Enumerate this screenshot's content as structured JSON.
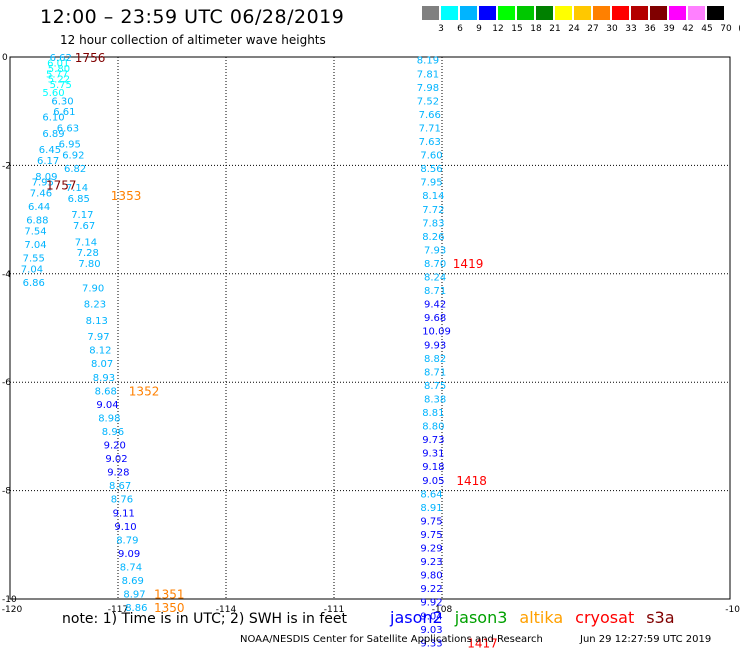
{
  "header": {
    "title": "12:00 – 23:59 UTC 06/28/2019",
    "subtitle": "12 hour collection of altimeter wave heights"
  },
  "scale": {
    "colors": [
      "#808080",
      "#00ffff",
      "#00b4ff",
      "#0000ff",
      "#00ff00",
      "#00c800",
      "#008000",
      "#ffff00",
      "#ffc800",
      "#ff8000",
      "#ff0000",
      "#b40000",
      "#800000",
      "#ff00ff",
      "#ff80ff",
      "#000000"
    ],
    "labels": [
      "3",
      "6",
      "9",
      "12",
      "15",
      "18",
      "21",
      "24",
      "27",
      "30",
      "33",
      "36",
      "39",
      "42",
      "45",
      "70",
      "(ft)"
    ]
  },
  "axes": {
    "x_ticks": [
      "-120",
      "-117",
      "-114",
      "-111",
      "-108",
      "-10"
    ],
    "y_ticks": [
      "0",
      "-2",
      "-4",
      "-6",
      "-8",
      "-10"
    ]
  },
  "passes": [
    {
      "satellite": "left-track",
      "readings": [
        {
          "v": "6.62",
          "lon": -118.9,
          "lat": 0.0,
          "c": "#00b4ff"
        },
        {
          "v": "6.01",
          "lon": -118.97,
          "lat": -0.1,
          "c": "#00ffff"
        },
        {
          "v": "5.80",
          "lon": -118.95,
          "lat": -0.2,
          "c": "#00ffff"
        },
        {
          "v": "5.77",
          "lon": -119.0,
          "lat": -0.3,
          "c": "#00ffff"
        },
        {
          "v": "5.22",
          "lon": -118.95,
          "lat": -0.4,
          "c": "#00ffff"
        },
        {
          "v": "5.75",
          "lon": -118.9,
          "lat": -0.5,
          "c": "#00ffff"
        },
        {
          "v": "5.60",
          "lon": -119.1,
          "lat": -0.65,
          "c": "#00ffff"
        },
        {
          "v": "6.30",
          "lon": -118.85,
          "lat": -0.8,
          "c": "#00b4ff"
        },
        {
          "v": "6.61",
          "lon": -118.8,
          "lat": -1.0,
          "c": "#00b4ff"
        },
        {
          "v": "6.10",
          "lon": -119.1,
          "lat": -1.1,
          "c": "#00b4ff"
        },
        {
          "v": "6.63",
          "lon": -118.7,
          "lat": -1.3,
          "c": "#00b4ff"
        },
        {
          "v": "6.89",
          "lon": -119.1,
          "lat": -1.4,
          "c": "#00b4ff"
        },
        {
          "v": "6.95",
          "lon": -118.65,
          "lat": -1.6,
          "c": "#00b4ff"
        },
        {
          "v": "6.45",
          "lon": -119.2,
          "lat": -1.7,
          "c": "#00b4ff"
        },
        {
          "v": "6.92",
          "lon": -118.55,
          "lat": -1.8,
          "c": "#00b4ff"
        },
        {
          "v": "6.17",
          "lon": -119.25,
          "lat": -1.9,
          "c": "#00b4ff"
        },
        {
          "v": "6.82",
          "lon": -118.5,
          "lat": -2.05,
          "c": "#00b4ff"
        },
        {
          "v": "8.09",
          "lon": -119.3,
          "lat": -2.2,
          "c": "#00b4ff"
        },
        {
          "v": "7.95",
          "lon": -119.4,
          "lat": -2.3,
          "c": "#00b4ff"
        },
        {
          "v": "7.14",
          "lon": -118.45,
          "lat": -2.4,
          "c": "#00b4ff"
        },
        {
          "v": "7.46",
          "lon": -119.45,
          "lat": -2.5,
          "c": "#00b4ff"
        },
        {
          "v": "6.85",
          "lon": -118.4,
          "lat": -2.6,
          "c": "#00b4ff"
        },
        {
          "v": "6.44",
          "lon": -119.5,
          "lat": -2.75,
          "c": "#00b4ff"
        },
        {
          "v": "7.17",
          "lon": -118.3,
          "lat": -2.9,
          "c": "#00b4ff"
        },
        {
          "v": "6.88",
          "lon": -119.55,
          "lat": -3.0,
          "c": "#00b4ff"
        },
        {
          "v": "7.67",
          "lon": -118.25,
          "lat": -3.1,
          "c": "#00b4ff"
        },
        {
          "v": "7.54",
          "lon": -119.6,
          "lat": -3.2,
          "c": "#00b4ff"
        },
        {
          "v": "7.14",
          "lon": -118.2,
          "lat": -3.4,
          "c": "#00b4ff"
        },
        {
          "v": "7.04",
          "lon": -119.6,
          "lat": -3.45,
          "c": "#00b4ff"
        },
        {
          "v": "7.28",
          "lon": -118.15,
          "lat": -3.6,
          "c": "#00b4ff"
        },
        {
          "v": "7.55",
          "lon": -119.65,
          "lat": -3.7,
          "c": "#00b4ff"
        },
        {
          "v": "7.80",
          "lon": -118.1,
          "lat": -3.8,
          "c": "#00b4ff"
        },
        {
          "v": "7.04",
          "lon": -119.7,
          "lat": -3.9,
          "c": "#00b4ff"
        },
        {
          "v": "6.86",
          "lon": -119.65,
          "lat": -4.15,
          "c": "#00b4ff"
        },
        {
          "v": "7.90",
          "lon": -118.0,
          "lat": -4.25,
          "c": "#00b4ff"
        },
        {
          "v": "8.23",
          "lon": -117.95,
          "lat": -4.55,
          "c": "#00b4ff"
        },
        {
          "v": "8.13",
          "lon": -117.9,
          "lat": -4.85,
          "c": "#00b4ff"
        },
        {
          "v": "7.97",
          "lon": -117.85,
          "lat": -5.15,
          "c": "#00b4ff"
        },
        {
          "v": "8.12",
          "lon": -117.8,
          "lat": -5.4,
          "c": "#00b4ff"
        },
        {
          "v": "8.07",
          "lon": -117.75,
          "lat": -5.65,
          "c": "#00b4ff"
        },
        {
          "v": "8.93",
          "lon": -117.7,
          "lat": -5.9,
          "c": "#00b4ff"
        },
        {
          "v": "8.68",
          "lon": -117.65,
          "lat": -6.15,
          "c": "#00b4ff"
        },
        {
          "v": "9.04",
          "lon": -117.6,
          "lat": -6.4,
          "c": "#0000ff"
        },
        {
          "v": "8.98",
          "lon": -117.55,
          "lat": -6.65,
          "c": "#00b4ff"
        },
        {
          "v": "8.96",
          "lon": -117.45,
          "lat": -6.9,
          "c": "#00b4ff"
        },
        {
          "v": "9.20",
          "lon": -117.4,
          "lat": -7.15,
          "c": "#0000ff"
        },
        {
          "v": "9.02",
          "lon": -117.35,
          "lat": -7.4,
          "c": "#0000ff"
        },
        {
          "v": "9.28",
          "lon": -117.3,
          "lat": -7.65,
          "c": "#0000ff"
        },
        {
          "v": "8.67",
          "lon": -117.25,
          "lat": -7.9,
          "c": "#00b4ff"
        },
        {
          "v": "8.76",
          "lon": -117.2,
          "lat": -8.15,
          "c": "#00b4ff"
        },
        {
          "v": "9.11",
          "lon": -117.15,
          "lat": -8.4,
          "c": "#0000ff"
        },
        {
          "v": "9.10",
          "lon": -117.1,
          "lat": -8.65,
          "c": "#0000ff"
        },
        {
          "v": "8.79",
          "lon": -117.05,
          "lat": -8.9,
          "c": "#00b4ff"
        },
        {
          "v": "9.09",
          "lon": -117.0,
          "lat": -9.15,
          "c": "#0000ff"
        },
        {
          "v": "8.74",
          "lon": -116.95,
          "lat": -9.4,
          "c": "#00b4ff"
        },
        {
          "v": "8.69",
          "lon": -116.9,
          "lat": -9.65,
          "c": "#00b4ff"
        },
        {
          "v": "8.97",
          "lon": -116.85,
          "lat": -9.9,
          "c": "#00b4ff"
        },
        {
          "v": "8.86",
          "lon": -116.8,
          "lat": -10.15,
          "c": "#00b4ff"
        }
      ]
    },
    {
      "satellite": "right-track",
      "readings": [
        {
          "v": "8.19",
          "lon": -108.7,
          "lat": -0.05,
          "c": "#00b4ff"
        },
        {
          "v": "7.81",
          "lon": -108.7,
          "lat": -0.3,
          "c": "#00b4ff"
        },
        {
          "v": "7.98",
          "lon": -108.7,
          "lat": -0.55,
          "c": "#00b4ff"
        },
        {
          "v": "7.52",
          "lon": -108.7,
          "lat": -0.8,
          "c": "#00b4ff"
        },
        {
          "v": "7.66",
          "lon": -108.65,
          "lat": -1.05,
          "c": "#00b4ff"
        },
        {
          "v": "7.71",
          "lon": -108.65,
          "lat": -1.3,
          "c": "#00b4ff"
        },
        {
          "v": "7.63",
          "lon": -108.65,
          "lat": -1.55,
          "c": "#00b4ff"
        },
        {
          "v": "7.60",
          "lon": -108.6,
          "lat": -1.8,
          "c": "#00b4ff"
        },
        {
          "v": "8.56",
          "lon": -108.6,
          "lat": -2.05,
          "c": "#00b4ff"
        },
        {
          "v": "7.95",
          "lon": -108.6,
          "lat": -2.3,
          "c": "#00b4ff"
        },
        {
          "v": "8.14",
          "lon": -108.55,
          "lat": -2.55,
          "c": "#00b4ff"
        },
        {
          "v": "7.72",
          "lon": -108.55,
          "lat": -2.8,
          "c": "#00b4ff"
        },
        {
          "v": "7.83",
          "lon": -108.55,
          "lat": -3.05,
          "c": "#00b4ff"
        },
        {
          "v": "8.26",
          "lon": -108.55,
          "lat": -3.3,
          "c": "#00b4ff"
        },
        {
          "v": "7.93",
          "lon": -108.5,
          "lat": -3.55,
          "c": "#00b4ff"
        },
        {
          "v": "8.70",
          "lon": -108.5,
          "lat": -3.8,
          "c": "#00b4ff"
        },
        {
          "v": "8.24",
          "lon": -108.5,
          "lat": -4.05,
          "c": "#00b4ff"
        },
        {
          "v": "8.71",
          "lon": -108.5,
          "lat": -4.3,
          "c": "#00b4ff"
        },
        {
          "v": "9.42",
          "lon": -108.5,
          "lat": -4.55,
          "c": "#0000ff"
        },
        {
          "v": "9.68",
          "lon": -108.5,
          "lat": -4.8,
          "c": "#0000ff"
        },
        {
          "v": "10.09",
          "lon": -108.55,
          "lat": -5.05,
          "c": "#0000ff"
        },
        {
          "v": "9.93",
          "lon": -108.5,
          "lat": -5.3,
          "c": "#0000ff"
        },
        {
          "v": "8.82",
          "lon": -108.5,
          "lat": -5.55,
          "c": "#00b4ff"
        },
        {
          "v": "8.71",
          "lon": -108.5,
          "lat": -5.8,
          "c": "#00b4ff"
        },
        {
          "v": "8.75",
          "lon": -108.5,
          "lat": -6.05,
          "c": "#00b4ff"
        },
        {
          "v": "8.38",
          "lon": -108.5,
          "lat": -6.3,
          "c": "#00b4ff"
        },
        {
          "v": "8.81",
          "lon": -108.55,
          "lat": -6.55,
          "c": "#00b4ff"
        },
        {
          "v": "8.80",
          "lon": -108.55,
          "lat": -6.8,
          "c": "#00b4ff"
        },
        {
          "v": "9.73",
          "lon": -108.55,
          "lat": -7.05,
          "c": "#0000ff"
        },
        {
          "v": "9.31",
          "lon": -108.55,
          "lat": -7.3,
          "c": "#0000ff"
        },
        {
          "v": "9.18",
          "lon": -108.55,
          "lat": -7.55,
          "c": "#0000ff"
        },
        {
          "v": "9.05",
          "lon": -108.55,
          "lat": -7.8,
          "c": "#0000ff"
        },
        {
          "v": "8.64",
          "lon": -108.6,
          "lat": -8.05,
          "c": "#00b4ff"
        },
        {
          "v": "8.91",
          "lon": -108.6,
          "lat": -8.3,
          "c": "#00b4ff"
        },
        {
          "v": "9.75",
          "lon": -108.6,
          "lat": -8.55,
          "c": "#0000ff"
        },
        {
          "v": "9.75",
          "lon": -108.6,
          "lat": -8.8,
          "c": "#0000ff"
        },
        {
          "v": "9.29",
          "lon": -108.6,
          "lat": -9.05,
          "c": "#0000ff"
        },
        {
          "v": "9.23",
          "lon": -108.6,
          "lat": -9.3,
          "c": "#0000ff"
        },
        {
          "v": "9.80",
          "lon": -108.6,
          "lat": -9.55,
          "c": "#0000ff"
        },
        {
          "v": "9.22",
          "lon": -108.6,
          "lat": -9.8,
          "c": "#0000ff"
        },
        {
          "v": "9.92",
          "lon": -108.6,
          "lat": -10.05,
          "c": "#0000ff"
        },
        {
          "v": "9.04",
          "lon": -108.6,
          "lat": -10.3,
          "c": "#0000ff"
        },
        {
          "v": "9.03",
          "lon": -108.6,
          "lat": -10.55,
          "c": "#0000ff"
        },
        {
          "v": "9.33",
          "lon": -108.6,
          "lat": -10.8,
          "c": "#0000ff"
        }
      ]
    }
  ],
  "time_labels": [
    {
      "t": "1756",
      "lon": -118.2,
      "lat": 0.0,
      "c": "#800000"
    },
    {
      "t": "1757",
      "lon": -119.0,
      "lat": -2.35,
      "c": "#800000"
    },
    {
      "t": "1353",
      "lon": -117.2,
      "lat": -2.55,
      "c": "#ff8000"
    },
    {
      "t": "1352",
      "lon": -116.7,
      "lat": -6.15,
      "c": "#ff8000"
    },
    {
      "t": "1351",
      "lon": -116.0,
      "lat": -9.9,
      "c": "#ff8000"
    },
    {
      "t": "1350",
      "lon": -116.0,
      "lat": -10.15,
      "c": "#ff8000"
    },
    {
      "t": "1419",
      "lon": -107.7,
      "lat": -3.8,
      "c": "#ff0000"
    },
    {
      "t": "1418",
      "lon": -107.6,
      "lat": -7.8,
      "c": "#ff0000"
    },
    {
      "t": "1417",
      "lon": -107.3,
      "lat": -10.8,
      "c": "#ff0000"
    }
  ],
  "note": "note: 1) Time is in UTC; 2) SWH is in feet",
  "legend": [
    {
      "label": "jason2",
      "color": "#0000ff"
    },
    {
      "label": "jason3",
      "color": "#00a000"
    },
    {
      "label": "altika",
      "color": "#ffa000"
    },
    {
      "label": "cryosat",
      "color": "#ff0000"
    },
    {
      "label": "s3a",
      "color": "#800000"
    }
  ],
  "footer": {
    "credit": "NOAA/NESDIS Center for Satellite Applications and Research",
    "timestamp": "Jun 29 12:27:59 UTC 2019"
  }
}
